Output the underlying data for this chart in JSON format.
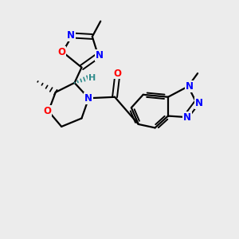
{
  "bg_color": "#ececec",
  "bond_color": "#000000",
  "n_color": "#0000ff",
  "o_color": "#ff0000",
  "h_color": "#2e8b8b",
  "figsize": [
    3.0,
    3.0
  ],
  "dpi": 100,
  "xlim": [
    0,
    10
  ],
  "ylim": [
    0,
    10
  ]
}
